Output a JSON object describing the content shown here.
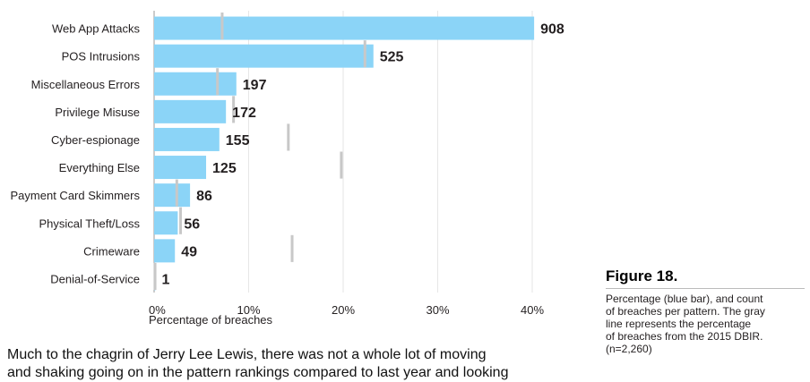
{
  "chart_data": {
    "type": "bar",
    "orientation": "horizontal",
    "categories": [
      "Web App Attacks",
      "POS Intrusions",
      "Miscellaneous Errors",
      "Privilege Misuse",
      "Cyber-espionage",
      "Everything Else",
      "Payment Card Skimmers",
      "Physical Theft/Loss",
      "Crimeware",
      "Denial-of-Service"
    ],
    "series": [
      {
        "values": [
          908,
          525,
          197,
          172,
          155,
          125,
          86,
          56,
          49,
          1
        ],
        "color": "#8bd4f7"
      }
    ],
    "percent_values": [
      40.2,
      23.2,
      8.7,
      7.6,
      6.9,
      5.5,
      3.8,
      2.5,
      2.2,
      0.04
    ],
    "previous_percent": [
      7.2,
      22.3,
      6.7,
      8.4,
      14.2,
      19.8,
      2.4,
      2.8,
      14.6,
      0.1
    ],
    "previous_color": "#c8c8c8",
    "xlabel": "Percentage of breaches",
    "xticks": [
      "0%",
      "10%",
      "20%",
      "30%",
      "40%"
    ],
    "xlim": [
      0,
      40
    ],
    "grid": true
  },
  "figure": {
    "title": "Figure 18.",
    "caption": "Percentage (blue bar), and count\nof breaches per pattern. The gray\nline represents the percentage\nof breaches from the 2015 DBIR.\n(n=2,260)"
  },
  "body_text": "Much to the chagrin of Jerry Lee Lewis, there was not a whole lot of moving\nand shaking going on in the pattern rankings compared to last year and looking"
}
